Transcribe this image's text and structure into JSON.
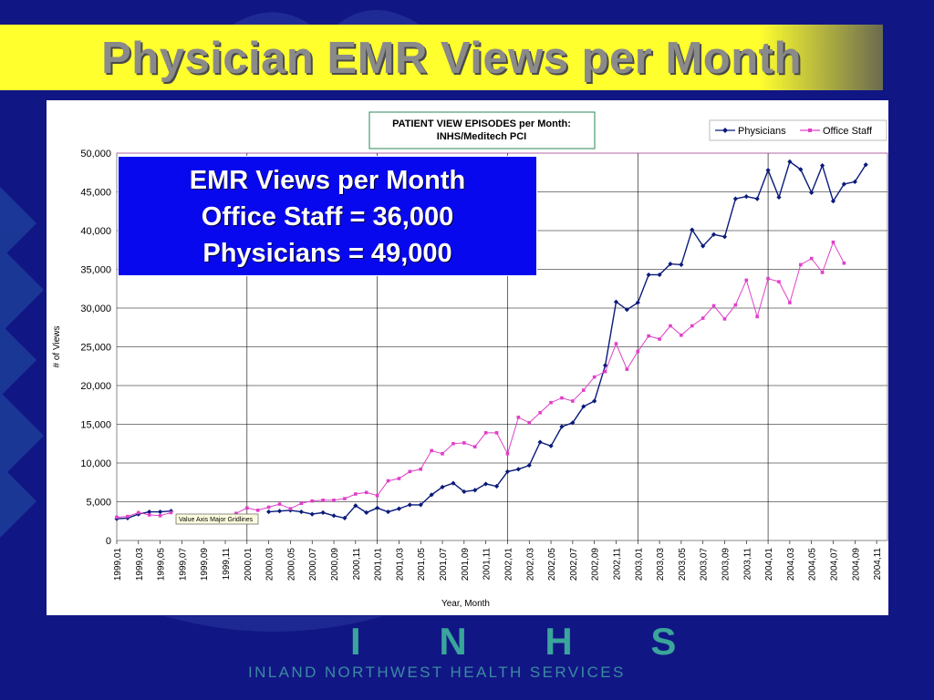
{
  "slide": {
    "title": "Physician EMR Views per Month",
    "logo_text": "I N H S",
    "tagline": "INLAND NORTHWEST HEALTH SERVICES"
  },
  "callout": {
    "line1": "EMR Views per Month",
    "line2": "Office Staff =  36,000",
    "line3": "Physicians =  49,000"
  },
  "tooltip": "Value Axis Major Gridlines",
  "colors": {
    "background": "#111685",
    "title_bar": "#ffff2e",
    "title_text": "#8a8a8a",
    "callout_bg": "#0808ee",
    "physicians": "#0a1a7a",
    "office_staff": "#e040c8",
    "logo": "#3aa59a"
  },
  "chart_data": {
    "type": "line",
    "title": "PATIENT VIEW EPISODES per Month:\nINHS/Meditech PCI",
    "xlabel": "Year, Month",
    "ylabel": "# of Views",
    "ylim": [
      0,
      50000
    ],
    "yticks": [
      "0",
      "5,000",
      "10,000",
      "15,000",
      "20,000",
      "25,000",
      "30,000",
      "35,000",
      "40,000",
      "45,000",
      "50,000"
    ],
    "grid": true,
    "legend": "top-right",
    "x_tick_labels": [
      "1999,01",
      "1999,03",
      "1999,05",
      "1999,07",
      "1999,09",
      "1999,11",
      "2000,01",
      "2000,03",
      "2000,05",
      "2000,07",
      "2000,09",
      "2000,11",
      "2001,01",
      "2001,03",
      "2001,05",
      "2001,07",
      "2001,09",
      "2001,11",
      "2002,01",
      "2002,03",
      "2002,05",
      "2002,07",
      "2002,09",
      "2002,11",
      "2003,01",
      "2003,03",
      "2003,05",
      "2003,07",
      "2003,09",
      "2003,11",
      "2004,01",
      "2004,03",
      "2004,05",
      "2004,07",
      "2004,09",
      "2004,11"
    ],
    "series": [
      {
        "name": "Physicians",
        "marker": "diamond",
        "values": [
          2800,
          2900,
          3400,
          3700,
          3700,
          3800,
          null,
          null,
          null,
          null,
          null,
          null,
          null,
          null,
          3700,
          3800,
          3900,
          3700,
          3400,
          3600,
          3200,
          2900,
          4500,
          3600,
          4200,
          3700,
          4100,
          4600,
          4600,
          5900,
          6900,
          7400,
          6300,
          6500,
          7300,
          7000,
          8900,
          9200,
          9700,
          12700,
          12200,
          14700,
          15200,
          17300,
          18000,
          22600,
          30800,
          29800,
          30700,
          34300,
          34300,
          35700,
          35600,
          40100,
          38000,
          39500,
          39200,
          44100,
          44400,
          44100,
          47800,
          44300,
          48900,
          47900,
          44900,
          48400,
          43800,
          46000,
          46300,
          48500
        ]
      },
      {
        "name": "Office Staff",
        "marker": "square",
        "values": [
          3000,
          3100,
          3600,
          3300,
          3200,
          3600,
          null,
          null,
          null,
          null,
          null,
          3500,
          4200,
          3900,
          4300,
          4700,
          4100,
          4800,
          5100,
          5200,
          5200,
          5400,
          6000,
          6200,
          5800,
          7700,
          8000,
          8900,
          9200,
          11600,
          11200,
          12500,
          12600,
          12100,
          13900,
          13900,
          11200,
          15900,
          15200,
          16500,
          17800,
          18400,
          18000,
          19400,
          21100,
          21800,
          25400,
          22100,
          24400,
          26400,
          26000,
          27700,
          26500,
          27700,
          28700,
          30300,
          28600,
          30400,
          33600,
          28900,
          33800,
          33400,
          30700,
          35600,
          36400,
          34600,
          38500,
          35800
        ]
      }
    ],
    "x_start_label": "1999,01",
    "physicians_start_index": 0,
    "office_start_index": 0
  }
}
